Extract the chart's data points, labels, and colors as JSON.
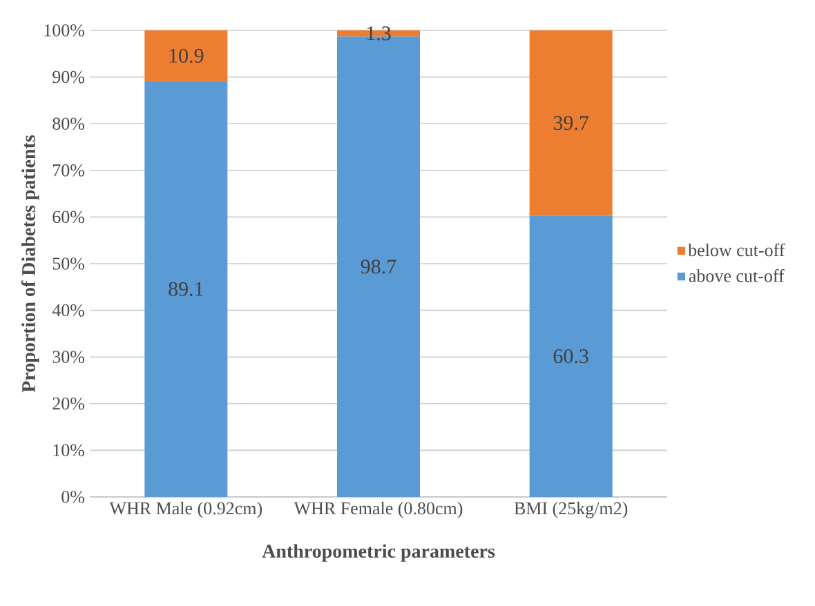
{
  "chart_data": {
    "type": "bar",
    "stacked": true,
    "xlabel": "Anthropometric parameters",
    "ylabel": "Proportion of Diabetes patients",
    "categories": [
      "WHR Male (0.92cm)",
      "WHR Female (0.80cm)",
      "BMI (25kg/m2)"
    ],
    "series": [
      {
        "name": "above cut-off",
        "color": "#5b9bd5",
        "values": [
          89.1,
          98.7,
          60.3
        ]
      },
      {
        "name": "below cut-off",
        "color": "#ed7d31",
        "values": [
          10.9,
          1.3,
          39.7
        ]
      }
    ],
    "ylim": [
      0,
      100
    ],
    "yticks": [
      {
        "value": 0,
        "label": "0%"
      },
      {
        "value": 10,
        "label": "10%"
      },
      {
        "value": 20,
        "label": "20%"
      },
      {
        "value": 30,
        "label": "30%"
      },
      {
        "value": 40,
        "label": "40%"
      },
      {
        "value": 50,
        "label": "50%"
      },
      {
        "value": 60,
        "label": "60%"
      },
      {
        "value": 70,
        "label": "70%"
      },
      {
        "value": 80,
        "label": "80%"
      },
      {
        "value": 90,
        "label": "90%"
      },
      {
        "value": 100,
        "label": "100%"
      }
    ],
    "grid": "y",
    "legend": "right",
    "data_labels": true
  }
}
